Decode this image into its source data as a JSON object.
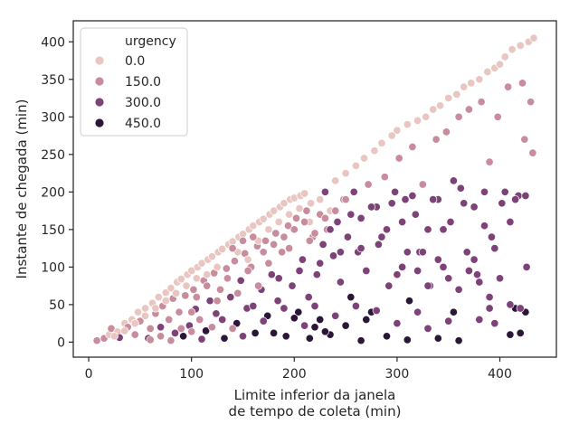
{
  "chart_data": {
    "type": "scatter",
    "xlabel_lines": [
      "Limite inferior da janela",
      "de tempo de coleta (min)"
    ],
    "ylabel": "Instante de chegada (min)",
    "xlim": [
      -15,
      455
    ],
    "ylim": [
      -20,
      428
    ],
    "x_ticks": [
      0,
      100,
      200,
      300,
      400
    ],
    "y_ticks": [
      0,
      50,
      100,
      150,
      200,
      250,
      300,
      350,
      400
    ],
    "grid": false,
    "legend": {
      "title": "urgency",
      "placement": "top-left",
      "entries": [
        {
          "label": "0.0",
          "value": 0,
          "color": "#e9c6c2"
        },
        {
          "label": "150.0",
          "value": 150,
          "color": "#c88c9c"
        },
        {
          "label": "300.0",
          "value": 300,
          "color": "#7d4278"
        },
        {
          "label": "450.0",
          "value": 450,
          "color": "#2b1638"
        }
      ]
    },
    "points": [
      [
        8,
        2,
        150
      ],
      [
        15,
        5,
        150
      ],
      [
        20,
        10,
        0
      ],
      [
        22,
        18,
        150
      ],
      [
        28,
        14,
        0
      ],
      [
        30,
        6,
        300
      ],
      [
        35,
        25,
        0
      ],
      [
        38,
        20,
        150
      ],
      [
        42,
        30,
        0
      ],
      [
        45,
        10,
        150
      ],
      [
        48,
        40,
        0
      ],
      [
        50,
        28,
        150
      ],
      [
        55,
        45,
        0
      ],
      [
        58,
        5,
        300
      ],
      [
        60,
        18,
        150
      ],
      [
        62,
        52,
        0
      ],
      [
        65,
        38,
        150
      ],
      [
        68,
        60,
        0
      ],
      [
        70,
        20,
        300
      ],
      [
        72,
        48,
        150
      ],
      [
        75,
        66,
        0
      ],
      [
        78,
        30,
        150
      ],
      [
        80,
        72,
        0
      ],
      [
        82,
        58,
        150
      ],
      [
        84,
        12,
        300
      ],
      [
        86,
        80,
        0
      ],
      [
        88,
        40,
        150
      ],
      [
        90,
        84,
        0
      ],
      [
        92,
        8,
        450
      ],
      [
        94,
        62,
        150
      ],
      [
        96,
        90,
        0
      ],
      [
        98,
        22,
        300
      ],
      [
        100,
        95,
        0
      ],
      [
        102,
        70,
        150
      ],
      [
        104,
        44,
        300
      ],
      [
        106,
        100,
        0
      ],
      [
        108,
        30,
        150
      ],
      [
        110,
        105,
        0
      ],
      [
        112,
        82,
        150
      ],
      [
        114,
        15,
        450
      ],
      [
        116,
        110,
        0
      ],
      [
        118,
        55,
        300
      ],
      [
        120,
        114,
        0
      ],
      [
        122,
        92,
        150
      ],
      [
        124,
        38,
        300
      ],
      [
        126,
        120,
        0
      ],
      [
        128,
        70,
        150
      ],
      [
        130,
        124,
        0
      ],
      [
        132,
        5,
        450
      ],
      [
        134,
        98,
        150
      ],
      [
        136,
        130,
        0
      ],
      [
        138,
        60,
        300
      ],
      [
        140,
        134,
        0
      ],
      [
        142,
        108,
        150
      ],
      [
        144,
        25,
        450
      ],
      [
        146,
        140,
        0
      ],
      [
        148,
        82,
        300
      ],
      [
        150,
        144,
        0
      ],
      [
        152,
        118,
        150
      ],
      [
        154,
        45,
        300
      ],
      [
        156,
        150,
        0
      ],
      [
        158,
        100,
        150
      ],
      [
        160,
        155,
        0
      ],
      [
        162,
        12,
        450
      ],
      [
        164,
        128,
        150
      ],
      [
        166,
        160,
        0
      ],
      [
        168,
        70,
        300
      ],
      [
        170,
        164,
        0
      ],
      [
        172,
        135,
        150
      ],
      [
        174,
        35,
        450
      ],
      [
        176,
        170,
        0
      ],
      [
        178,
        90,
        300
      ],
      [
        180,
        175,
        0
      ],
      [
        182,
        145,
        150
      ],
      [
        184,
        55,
        300
      ],
      [
        186,
        180,
        0
      ],
      [
        188,
        120,
        150
      ],
      [
        190,
        185,
        0
      ],
      [
        192,
        8,
        450
      ],
      [
        194,
        155,
        150
      ],
      [
        196,
        190,
        0
      ],
      [
        198,
        75,
        300
      ],
      [
        200,
        192,
        0
      ],
      [
        202,
        165,
        150
      ],
      [
        204,
        40,
        450
      ],
      [
        206,
        195,
        0
      ],
      [
        208,
        110,
        300
      ],
      [
        210,
        198,
        0
      ],
      [
        212,
        175,
        150
      ],
      [
        214,
        60,
        300
      ],
      [
        216,
        185,
        0
      ],
      [
        218,
        140,
        150
      ],
      [
        220,
        20,
        450
      ],
      [
        222,
        90,
        300
      ],
      [
        225,
        170,
        150
      ],
      [
        228,
        130,
        300
      ],
      [
        230,
        200,
        300
      ],
      [
        232,
        150,
        150
      ],
      [
        235,
        10,
        450
      ],
      [
        238,
        115,
        300
      ],
      [
        240,
        215,
        0
      ],
      [
        242,
        160,
        300
      ],
      [
        245,
        80,
        300
      ],
      [
        248,
        190,
        150
      ],
      [
        250,
        225,
        0
      ],
      [
        252,
        140,
        300
      ],
      [
        255,
        60,
        450
      ],
      [
        258,
        200,
        300
      ],
      [
        260,
        235,
        0
      ],
      [
        262,
        120,
        300
      ],
      [
        265,
        165,
        300
      ],
      [
        268,
        245,
        0
      ],
      [
        270,
        95,
        300
      ],
      [
        272,
        210,
        150
      ],
      [
        275,
        40,
        450
      ],
      [
        278,
        255,
        0
      ],
      [
        280,
        180,
        300
      ],
      [
        282,
        130,
        300
      ],
      [
        285,
        265,
        0
      ],
      [
        288,
        220,
        150
      ],
      [
        290,
        150,
        300
      ],
      [
        292,
        75,
        300
      ],
      [
        295,
        275,
        0
      ],
      [
        298,
        200,
        300
      ],
      [
        300,
        282,
        0
      ],
      [
        302,
        245,
        150
      ],
      [
        305,
        100,
        300
      ],
      [
        308,
        190,
        300
      ],
      [
        310,
        290,
        0
      ],
      [
        312,
        55,
        450
      ],
      [
        315,
        260,
        150
      ],
      [
        318,
        170,
        300
      ],
      [
        320,
        295,
        0
      ],
      [
        322,
        120,
        300
      ],
      [
        325,
        210,
        150
      ],
      [
        328,
        300,
        0
      ],
      [
        330,
        150,
        300
      ],
      [
        332,
        75,
        300
      ],
      [
        335,
        310,
        0
      ],
      [
        338,
        270,
        150
      ],
      [
        340,
        190,
        300
      ],
      [
        342,
        315,
        0
      ],
      [
        345,
        100,
        300
      ],
      [
        348,
        280,
        150
      ],
      [
        350,
        325,
        0
      ],
      [
        352,
        160,
        300
      ],
      [
        355,
        40,
        450
      ],
      [
        358,
        330,
        0
      ],
      [
        360,
        300,
        150
      ],
      [
        362,
        205,
        300
      ],
      [
        365,
        340,
        0
      ],
      [
        368,
        120,
        300
      ],
      [
        370,
        310,
        150
      ],
      [
        372,
        345,
        0
      ],
      [
        375,
        180,
        300
      ],
      [
        378,
        90,
        300
      ],
      [
        380,
        350,
        0
      ],
      [
        382,
        320,
        150
      ],
      [
        385,
        200,
        300
      ],
      [
        388,
        360,
        0
      ],
      [
        390,
        240,
        150
      ],
      [
        392,
        140,
        300
      ],
      [
        395,
        365,
        0
      ],
      [
        398,
        300,
        150
      ],
      [
        400,
        370,
        0
      ],
      [
        402,
        185,
        300
      ],
      [
        405,
        380,
        0
      ],
      [
        408,
        340,
        150
      ],
      [
        410,
        160,
        300
      ],
      [
        412,
        390,
        0
      ],
      [
        415,
        45,
        450
      ],
      [
        418,
        195,
        300
      ],
      [
        420,
        395,
        0
      ],
      [
        422,
        345,
        150
      ],
      [
        424,
        270,
        150
      ],
      [
        426,
        100,
        300
      ],
      [
        428,
        400,
        0
      ],
      [
        430,
        320,
        150
      ],
      [
        432,
        252,
        150
      ],
      [
        433,
        405,
        0
      ],
      [
        100,
        14,
        150
      ],
      [
        110,
        4,
        300
      ],
      [
        120,
        20,
        150
      ],
      [
        130,
        30,
        300
      ],
      [
        140,
        18,
        150
      ],
      [
        150,
        8,
        300
      ],
      [
        160,
        48,
        300
      ],
      [
        170,
        28,
        300
      ],
      [
        180,
        12,
        450
      ],
      [
        190,
        45,
        300
      ],
      [
        200,
        32,
        450
      ],
      [
        210,
        22,
        300
      ],
      [
        215,
        5,
        450
      ],
      [
        220,
        48,
        300
      ],
      [
        225,
        30,
        450
      ],
      [
        230,
        14,
        450
      ],
      [
        240,
        35,
        300
      ],
      [
        250,
        22,
        450
      ],
      [
        260,
        48,
        300
      ],
      [
        265,
        2,
        450
      ],
      [
        270,
        30,
        450
      ],
      [
        280,
        42,
        300
      ],
      [
        290,
        8,
        450
      ],
      [
        300,
        25,
        300
      ],
      [
        310,
        3,
        450
      ],
      [
        320,
        40,
        300
      ],
      [
        330,
        18,
        300
      ],
      [
        340,
        5,
        450
      ],
      [
        350,
        28,
        300
      ],
      [
        360,
        2,
        450
      ],
      [
        380,
        30,
        300
      ],
      [
        390,
        45,
        300
      ],
      [
        395,
        25,
        300
      ],
      [
        410,
        10,
        450
      ],
      [
        420,
        12,
        450
      ],
      [
        425,
        40,
        450
      ],
      [
        60,
        3,
        150
      ],
      [
        70,
        8,
        150
      ],
      [
        80,
        2,
        150
      ],
      [
        90,
        18,
        150
      ],
      [
        100,
        40,
        150
      ],
      [
        105,
        60,
        150
      ],
      [
        115,
        75,
        150
      ],
      [
        125,
        55,
        150
      ],
      [
        135,
        85,
        150
      ],
      [
        145,
        65,
        150
      ],
      [
        155,
        95,
        150
      ],
      [
        165,
        75,
        150
      ],
      [
        175,
        105,
        150
      ],
      [
        185,
        85,
        300
      ],
      [
        195,
        125,
        150
      ],
      [
        205,
        95,
        300
      ],
      [
        215,
        135,
        150
      ],
      [
        225,
        105,
        300
      ],
      [
        235,
        150,
        300
      ],
      [
        245,
        120,
        300
      ],
      [
        255,
        170,
        300
      ],
      [
        265,
        125,
        300
      ],
      [
        275,
        180,
        300
      ],
      [
        285,
        140,
        300
      ],
      [
        295,
        185,
        300
      ],
      [
        305,
        160,
        300
      ],
      [
        315,
        195,
        300
      ],
      [
        325,
        120,
        300
      ],
      [
        335,
        190,
        300
      ],
      [
        345,
        150,
        300
      ],
      [
        355,
        215,
        300
      ],
      [
        365,
        185,
        300
      ],
      [
        375,
        110,
        300
      ],
      [
        385,
        155,
        300
      ],
      [
        395,
        125,
        300
      ],
      [
        405,
        200,
        300
      ],
      [
        415,
        190,
        300
      ],
      [
        425,
        195,
        300
      ],
      [
        300,
        90,
        300
      ],
      [
        310,
        120,
        300
      ],
      [
        320,
        95,
        300
      ],
      [
        330,
        75,
        300
      ],
      [
        340,
        110,
        300
      ],
      [
        350,
        85,
        300
      ],
      [
        360,
        70,
        300
      ],
      [
        370,
        95,
        300
      ],
      [
        380,
        80,
        300
      ],
      [
        390,
        60,
        300
      ],
      [
        400,
        85,
        300
      ],
      [
        410,
        50,
        300
      ],
      [
        420,
        45,
        300
      ],
      [
        145,
        120,
        0
      ],
      [
        155,
        110,
        0
      ],
      [
        165,
        135,
        0
      ],
      [
        175,
        150,
        0
      ],
      [
        185,
        160,
        0
      ],
      [
        195,
        170,
        0
      ],
      [
        205,
        178,
        0
      ],
      [
        215,
        160,
        0
      ],
      [
        225,
        190,
        0
      ],
      [
        235,
        175,
        0
      ],
      [
        125,
        100,
        0
      ],
      [
        115,
        90,
        0
      ],
      [
        105,
        85,
        0
      ],
      [
        95,
        75,
        0
      ],
      [
        85,
        65,
        0
      ],
      [
        75,
        55,
        0
      ],
      [
        65,
        45,
        0
      ],
      [
        55,
        35,
        0
      ],
      [
        45,
        25,
        0
      ],
      [
        35,
        15,
        0
      ],
      [
        25,
        8,
        0
      ],
      [
        140,
        125,
        150
      ],
      [
        150,
        135,
        150
      ],
      [
        160,
        140,
        150
      ],
      [
        170,
        120,
        150
      ],
      [
        180,
        130,
        150
      ],
      [
        190,
        140,
        150
      ],
      [
        200,
        150,
        150
      ],
      [
        210,
        160,
        150
      ],
      [
        220,
        145,
        150
      ],
      [
        230,
        165,
        150
      ],
      [
        240,
        175,
        150
      ],
      [
        250,
        190,
        150
      ]
    ]
  }
}
